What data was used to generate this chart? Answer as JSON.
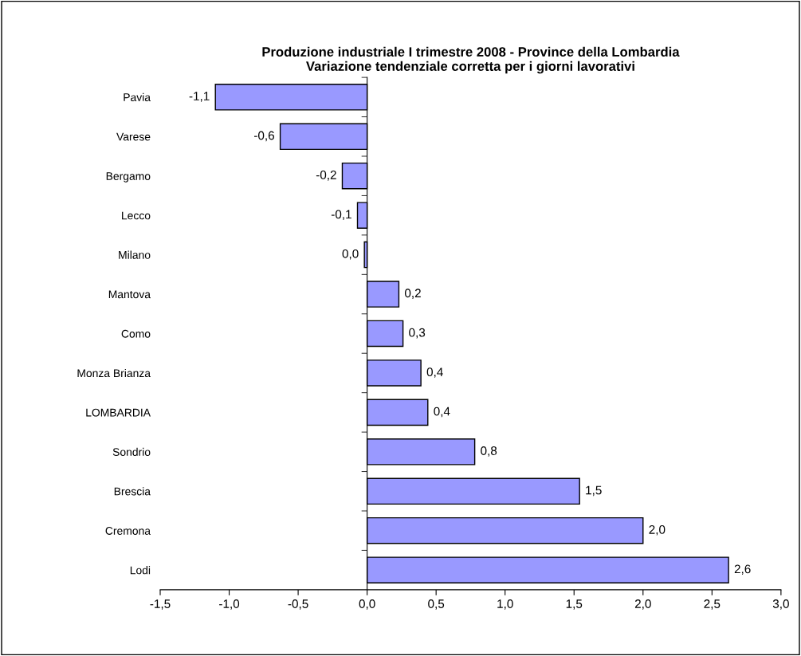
{
  "chart_data": {
    "type": "bar",
    "orientation": "horizontal",
    "title": "Produzione industriale I trimestre 2008 - Province della Lombardia\nVariazione tendenziale corretta per i giorni lavorativi",
    "categories": [
      "Pavia",
      "Varese",
      "Bergamo",
      "Lecco",
      "Milano",
      "Mantova",
      "Como",
      "Monza Brianza",
      "LOMBARDIA",
      "Sondrio",
      "Brescia",
      "Cremona",
      "Lodi"
    ],
    "values": [
      -1.1,
      -0.63,
      -0.18,
      -0.07,
      -0.02,
      0.23,
      0.26,
      0.39,
      0.44,
      0.78,
      1.54,
      2.0,
      2.62
    ],
    "value_labels": [
      "-1,1",
      "-0,6",
      "-0,2",
      "-0,1",
      "0,0",
      "0,2",
      "0,3",
      "0,4",
      "0,4",
      "0,8",
      "1,5",
      "2,0",
      "2,6"
    ],
    "color": "#9999ff",
    "xlim": [
      -1.5,
      3.0
    ],
    "xticks": [
      {
        "value": -1.5,
        "label": "-1,5"
      },
      {
        "value": -1.0,
        "label": "-1,0"
      },
      {
        "value": -0.5,
        "label": "-0,5"
      },
      {
        "value": 0.0,
        "label": "0,0"
      },
      {
        "value": 0.5,
        "label": "0,5"
      },
      {
        "value": 1.0,
        "label": "1,0"
      },
      {
        "value": 1.5,
        "label": "1,5"
      },
      {
        "value": 2.0,
        "label": "2,0"
      },
      {
        "value": 2.5,
        "label": "2,5"
      },
      {
        "value": 3.0,
        "label": "3,0"
      }
    ],
    "legend": false
  }
}
